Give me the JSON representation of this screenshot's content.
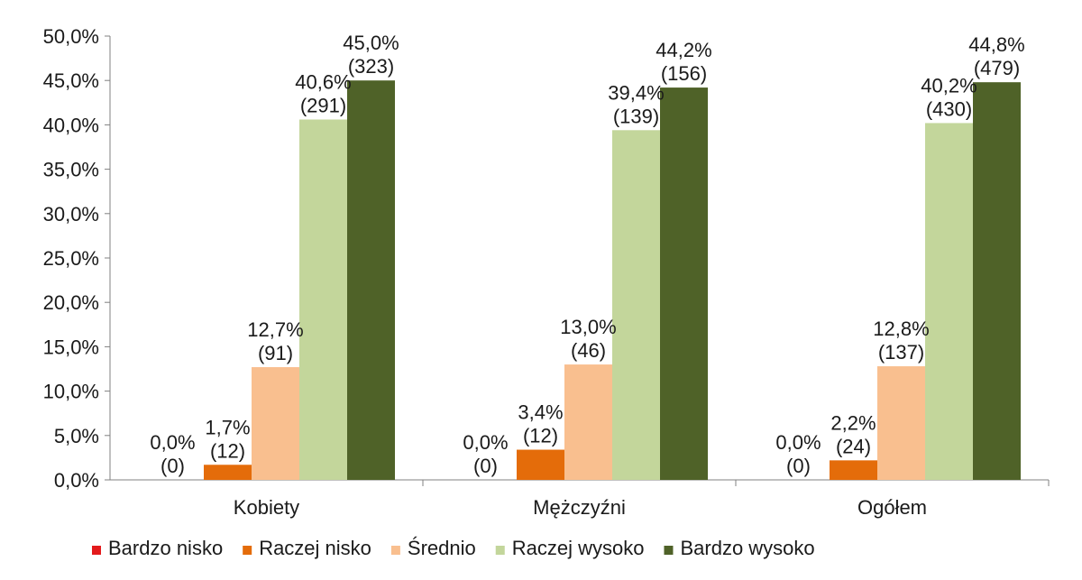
{
  "chart_data": {
    "type": "bar",
    "categories": [
      "Kobiety",
      "Mężczyźni",
      "Ogółem"
    ],
    "ylim": [
      0,
      50
    ],
    "ytick_step": 5,
    "ytick_labels": [
      "0,0%",
      "5,0%",
      "10,0%",
      "15,0%",
      "20,0%",
      "25,0%",
      "30,0%",
      "35,0%",
      "40,0%",
      "45,0%",
      "50,0%"
    ],
    "legend_position": "bottom",
    "grid": false,
    "series": [
      {
        "name": "Bardzo nisko",
        "color": "#e31a1c",
        "values": [
          0.0,
          0.0,
          0.0
        ],
        "labels": [
          [
            "0,0%",
            "(0)"
          ],
          [
            "0,0%",
            "(0)"
          ],
          [
            "0,0%",
            "(0)"
          ]
        ]
      },
      {
        "name": "Raczej nisko",
        "color": "#e46c0a",
        "values": [
          1.7,
          3.4,
          2.2
        ],
        "labels": [
          [
            "1,7%",
            "(12)"
          ],
          [
            "3,4%",
            "(12)"
          ],
          [
            "2,2%",
            "(24)"
          ]
        ]
      },
      {
        "name": "Średnio",
        "color": "#f9bf8f",
        "values": [
          12.7,
          13.0,
          12.8
        ],
        "labels": [
          [
            "12,7%",
            "(91)"
          ],
          [
            "13,0%",
            "(46)"
          ],
          [
            "12,8%",
            "(137)"
          ]
        ]
      },
      {
        "name": "Raczej wysoko",
        "color": "#c3d69b",
        "values": [
          40.6,
          39.4,
          40.2
        ],
        "labels": [
          [
            "40,6%",
            "(291)"
          ],
          [
            "39,4%",
            "(139)"
          ],
          [
            "40,2%",
            "(430)"
          ]
        ]
      },
      {
        "name": "Bardzo wysoko",
        "color": "#4f6228",
        "values": [
          45.0,
          44.2,
          44.8
        ],
        "labels": [
          [
            "45,0%",
            "(323)"
          ],
          [
            "44,2%",
            "(156)"
          ],
          [
            "44,8%",
            "(479)"
          ]
        ]
      }
    ]
  }
}
